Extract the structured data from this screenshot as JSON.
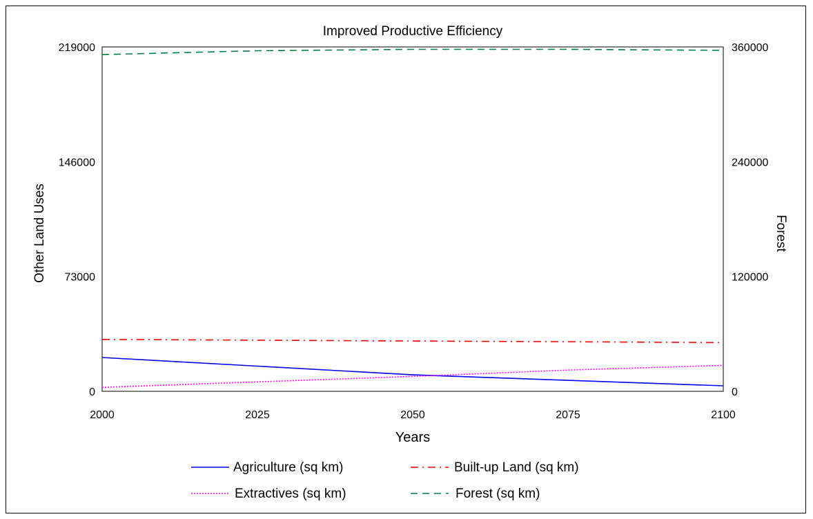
{
  "chart_data": {
    "type": "line",
    "title": "Improved Productive Efficiency",
    "xlabel": "Years",
    "ylabel_left": "Other Land Uses",
    "ylabel_right": "Forest",
    "x": [
      2000,
      2025,
      2050,
      2075,
      2100
    ],
    "xlim": [
      2000,
      2100
    ],
    "x_ticks": [
      "2000",
      "2025",
      "2050",
      "2075",
      "2100"
    ],
    "ylim_left": [
      0,
      219000
    ],
    "y_ticks_left": [
      "0",
      "73000",
      "146000",
      "219000"
    ],
    "ylim_right": [
      0,
      360000
    ],
    "y_ticks_right": [
      "0",
      "120000",
      "240000",
      "360000"
    ],
    "grid": false,
    "legend_position": "bottom",
    "series": [
      {
        "name": "Agriculture (sq km)",
        "axis": "left",
        "color": "#0000ff",
        "dash": "solid",
        "values": [
          21500,
          16000,
          10500,
          7000,
          3500
        ]
      },
      {
        "name": "Built-up Land (sq km)",
        "axis": "left",
        "color": "#ff0000",
        "dash": "dashdot",
        "values": [
          33000,
          32500,
          32000,
          31500,
          31000
        ]
      },
      {
        "name": "Extractives (sq km)",
        "axis": "left",
        "color": "#ff00ff",
        "dash": "dotted",
        "values": [
          2500,
          6000,
          9500,
          13500,
          16500
        ]
      },
      {
        "name": "Forest (sq km)",
        "axis": "right",
        "color": "#008040",
        "dash": "dashed",
        "values": [
          352000,
          356000,
          357500,
          357500,
          356500
        ]
      }
    ]
  }
}
